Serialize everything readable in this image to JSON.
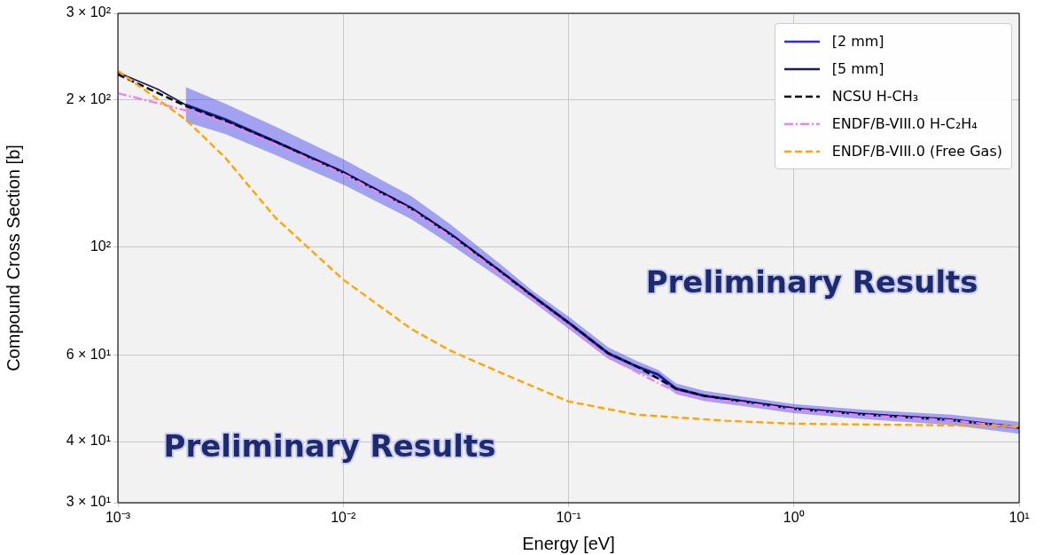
{
  "chart_data": {
    "type": "line",
    "xlabel": "Energy [eV]",
    "ylabel": "Compound Cross Section [b]",
    "log": "xy",
    "grid": true,
    "legend": "top right",
    "xlim": [
      0.001,
      10
    ],
    "ylim": [
      30,
      300
    ],
    "xticks": [
      {
        "value": 0.001,
        "label": "10⁻³"
      },
      {
        "value": 0.01,
        "label": "10⁻²"
      },
      {
        "value": 0.1,
        "label": "10⁻¹"
      },
      {
        "value": 1,
        "label": "10⁰"
      },
      {
        "value": 10,
        "label": "10¹"
      }
    ],
    "yticks": [
      {
        "value": 30,
        "label": "3 × 10¹"
      },
      {
        "value": 40,
        "label": "4 × 10¹"
      },
      {
        "value": 60,
        "label": "6 × 10¹"
      },
      {
        "value": 100,
        "label": "10²"
      },
      {
        "value": 200,
        "label": "2 × 10²"
      },
      {
        "value": 300,
        "label": "3 × 10²"
      }
    ],
    "annotations": [
      "Preliminary Results",
      "Preliminary Results"
    ],
    "series": [
      {
        "name": "[2 mm]",
        "color": "#2a2aee",
        "line_style": "solid",
        "x": [
          0.002,
          0.003,
          0.005,
          0.01,
          0.02,
          0.03,
          0.05,
          0.07,
          0.1,
          0.15,
          0.2,
          0.25,
          0.3,
          0.4,
          0.6,
          1,
          2,
          5,
          10
        ],
        "values": [
          195,
          182,
          164,
          142,
          120,
          106,
          89,
          79,
          70,
          60.6,
          57,
          54.8,
          51.3,
          49.6,
          48.3,
          46.7,
          45.5,
          44.3,
          42.7
        ],
        "lower": [
          180,
          170,
          154,
          134,
          114,
          101,
          86,
          77,
          68,
          59,
          55.5,
          53.5,
          50,
          48.4,
          47.2,
          45.7,
          44.5,
          43.2,
          41.5
        ],
        "upper": [
          212,
          196,
          176,
          151,
          127,
          111,
          92,
          81,
          72,
          62.3,
          58.5,
          56,
          52.6,
          50.8,
          49.4,
          47.7,
          46.5,
          45.4,
          43.9
        ]
      },
      {
        "name": "[5 mm]",
        "color": "#1a1a5e",
        "line_style": "solid",
        "x": [
          0.001,
          0.0015,
          0.002,
          0.003,
          0.005,
          0.01,
          0.02,
          0.03,
          0.05,
          0.07,
          0.1,
          0.15,
          0.2,
          0.25,
          0.3,
          0.4,
          0.6,
          1,
          2,
          5,
          10
        ],
        "values": [
          227,
          210,
          195,
          182,
          164,
          142,
          120,
          106,
          89,
          79,
          70,
          60.6,
          57,
          54.8,
          51.3,
          49.6,
          48.3,
          46.7,
          45.5,
          44.3,
          42.7
        ]
      },
      {
        "name": "NCSU H-CH₃",
        "color": "#000000",
        "line_style": "dashed",
        "x": [
          0.001,
          0.002,
          0.003,
          0.005,
          0.01,
          0.02,
          0.03,
          0.05,
          0.07,
          0.1,
          0.15,
          0.2,
          0.3,
          0.4,
          0.6,
          1,
          2,
          5,
          10
        ],
        "values": [
          225,
          194,
          181,
          164,
          142,
          120,
          106,
          89,
          79,
          70,
          60.6,
          57,
          51.3,
          49.6,
          48.3,
          46.7,
          45.5,
          44.3,
          42.7
        ]
      },
      {
        "name": "ENDF/B-VIII.0  H-C₂H₄",
        "color": "#ee82ee",
        "line_style": "dashdot",
        "x": [
          0.001,
          0.002,
          0.003,
          0.005,
          0.01,
          0.02,
          0.03,
          0.05,
          0.07,
          0.1,
          0.15,
          0.2,
          0.3,
          0.4,
          0.6,
          1,
          2,
          5,
          10
        ],
        "values": [
          206,
          190,
          179,
          162,
          141,
          119,
          105,
          88,
          78,
          69,
          59.5,
          55.5,
          50.5,
          49,
          48,
          46.5,
          45.3,
          44.2,
          42.7
        ]
      },
      {
        "name": "ENDF/B-VIII.0 (Free Gas)",
        "color": "#ffa500",
        "line_style": "dashed",
        "x": [
          0.001,
          0.002,
          0.003,
          0.005,
          0.01,
          0.02,
          0.03,
          0.05,
          0.1,
          0.2,
          0.5,
          1,
          10
        ],
        "values": [
          229,
          182,
          152,
          114.7,
          85.7,
          68,
          61.3,
          55.3,
          48.3,
          45.4,
          44.1,
          43.5,
          43
        ]
      }
    ]
  }
}
